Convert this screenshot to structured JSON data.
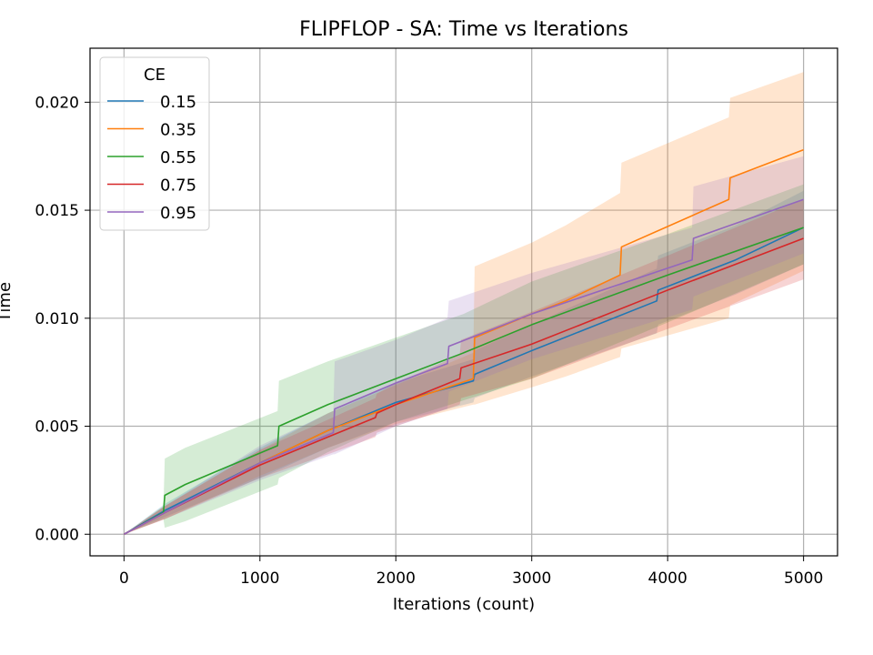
{
  "chart_data": {
    "type": "line",
    "title": "FLIPFLOP - SA: Time vs Iterations",
    "xlabel": "Iterations (count)",
    "ylabel": "Time",
    "xlim": [
      -250,
      5250
    ],
    "ylim": [
      -0.001,
      0.0225
    ],
    "xticks": [
      0,
      1000,
      2000,
      3000,
      4000,
      5000
    ],
    "xtick_labels": [
      "0",
      "1000",
      "2000",
      "3000",
      "4000",
      "5000"
    ],
    "yticks": [
      0.0,
      0.005,
      0.01,
      0.015,
      0.02
    ],
    "ytick_labels": [
      "0.000",
      "0.005",
      "0.010",
      "0.015",
      "0.020"
    ],
    "grid": true,
    "legend": {
      "title": "CE",
      "placement": "top-left"
    },
    "series": [
      {
        "name": "0.15",
        "color": "#1f77b4",
        "x": [
          0,
          300,
          1000,
          1500,
          2000,
          2570,
          2580,
          3000,
          3920,
          3930,
          4500,
          5000
        ],
        "y": [
          0,
          0.0011,
          0.0033,
          0.0048,
          0.0061,
          0.0071,
          0.0074,
          0.0085,
          0.0108,
          0.0113,
          0.0127,
          0.0142
        ],
        "lower": [
          0,
          0.0008,
          0.0026,
          0.004,
          0.0052,
          0.0061,
          0.0063,
          0.0073,
          0.0093,
          0.0097,
          0.0111,
          0.0125
        ],
        "upper": [
          0,
          0.0014,
          0.004,
          0.0056,
          0.007,
          0.0081,
          0.0085,
          0.0097,
          0.0123,
          0.0129,
          0.0143,
          0.0159
        ]
      },
      {
        "name": "0.35",
        "color": "#ff7f0e",
        "x": [
          0,
          300,
          1000,
          1500,
          2000,
          2570,
          2580,
          3000,
          3250,
          3650,
          3660,
          4450,
          4460,
          5000
        ],
        "y": [
          0,
          0.001,
          0.0033,
          0.0048,
          0.006,
          0.0072,
          0.0091,
          0.0102,
          0.0108,
          0.012,
          0.0133,
          0.0155,
          0.0165,
          0.0178
        ],
        "lower": [
          0,
          0.0007,
          0.0027,
          0.004,
          0.0051,
          0.006,
          0.006,
          0.0068,
          0.0073,
          0.0082,
          0.0086,
          0.01,
          0.0106,
          0.0122
        ],
        "upper": [
          0,
          0.0013,
          0.0039,
          0.0056,
          0.0069,
          0.0084,
          0.0124,
          0.0135,
          0.0143,
          0.0158,
          0.0172,
          0.0193,
          0.0202,
          0.0214
        ]
      },
      {
        "name": "0.55",
        "color": "#2ca02c",
        "x": [
          0,
          290,
          300,
          450,
          1130,
          1140,
          1500,
          2000,
          2500,
          3000,
          4000,
          5000
        ],
        "y": [
          0,
          0.001,
          0.0018,
          0.0023,
          0.0041,
          0.005,
          0.006,
          0.0072,
          0.0084,
          0.0097,
          0.012,
          0.0142
        ],
        "lower": [
          0,
          0.0007,
          0.0003,
          0.0006,
          0.0023,
          0.0026,
          0.0038,
          0.0052,
          0.0062,
          0.0072,
          0.0098,
          0.0125
        ],
        "upper": [
          0,
          0.0013,
          0.0035,
          0.004,
          0.0057,
          0.0071,
          0.008,
          0.0091,
          0.0102,
          0.0117,
          0.0139,
          0.0162
        ]
      },
      {
        "name": "0.75",
        "color": "#d62728",
        "x": [
          0,
          300,
          1000,
          1500,
          1850,
          1860,
          2000,
          2470,
          2480,
          3000,
          4000,
          5000
        ],
        "y": [
          0,
          0.001,
          0.0032,
          0.0045,
          0.0054,
          0.0056,
          0.006,
          0.0072,
          0.0077,
          0.0088,
          0.0113,
          0.0137
        ],
        "lower": [
          0,
          0.0007,
          0.0026,
          0.0037,
          0.0045,
          0.0047,
          0.005,
          0.006,
          0.0063,
          0.0072,
          0.0095,
          0.0118
        ],
        "upper": [
          0,
          0.0013,
          0.0039,
          0.0053,
          0.0063,
          0.0065,
          0.007,
          0.0083,
          0.009,
          0.0103,
          0.0129,
          0.0155
        ]
      },
      {
        "name": "0.95",
        "color": "#9467bd",
        "x": [
          0,
          300,
          1000,
          1540,
          1550,
          2000,
          2380,
          2390,
          3000,
          4180,
          4190,
          5000
        ],
        "y": [
          0,
          0.001,
          0.0033,
          0.0047,
          0.0058,
          0.007,
          0.0079,
          0.0087,
          0.0102,
          0.0127,
          0.0137,
          0.0155
        ],
        "lower": [
          0,
          0.0007,
          0.0025,
          0.0037,
          0.0037,
          0.005,
          0.0058,
          0.0066,
          0.0081,
          0.0104,
          0.011,
          0.013
        ],
        "upper": [
          0,
          0.0013,
          0.0041,
          0.0057,
          0.008,
          0.009,
          0.01,
          0.0108,
          0.0121,
          0.0142,
          0.0161,
          0.0175
        ]
      }
    ]
  }
}
